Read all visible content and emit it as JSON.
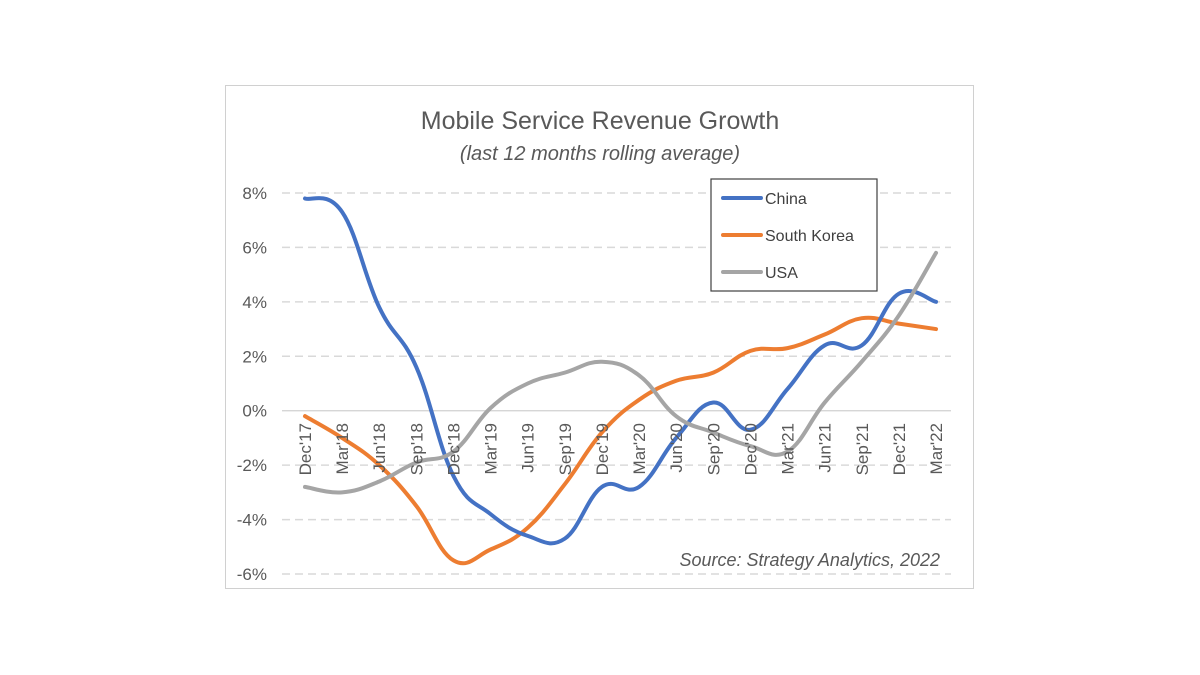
{
  "chart_data": {
    "type": "line",
    "title": "Mobile Service Revenue Growth",
    "subtitle": "(last 12 months rolling average)",
    "xlabel": "",
    "ylabel": "",
    "categories": [
      "Dec'17",
      "Mar'18",
      "Jun'18",
      "Sep'18",
      "Dec'18",
      "Mar'19",
      "Jun'19",
      "Sep'19",
      "Dec'19",
      "Mar'20",
      "Jun'20",
      "Sep'20",
      "Dec'20",
      "Mar'21",
      "Jun'21",
      "Sep'21",
      "Dec'21",
      "Mar'22"
    ],
    "ylim": [
      -6,
      8
    ],
    "yticks": [
      8,
      6,
      4,
      2,
      0,
      -2,
      -4,
      -6
    ],
    "ytick_labels": [
      "8%",
      "6%",
      "4%",
      "2%",
      "0%",
      "-2%",
      "-4%",
      "-6%"
    ],
    "grid": "horizontal dashed",
    "legend_position": "top-right",
    "series": [
      {
        "name": "China",
        "color": "#4472C4",
        "values": [
          7.8,
          7.3,
          3.8,
          1.6,
          -2.4,
          -3.8,
          -4.6,
          -4.7,
          -2.8,
          -2.8,
          -1.0,
          0.3,
          -0.7,
          0.8,
          2.4,
          2.4,
          4.3,
          4.0
        ]
      },
      {
        "name": "South Korea",
        "color": "#ED7D31",
        "values": [
          -0.2,
          -1.0,
          -2.0,
          -3.5,
          -5.5,
          -5.1,
          -4.3,
          -2.7,
          -0.8,
          0.4,
          1.1,
          1.4,
          2.2,
          2.3,
          2.8,
          3.4,
          3.2,
          3.0
        ]
      },
      {
        "name": "USA",
        "color": "#A5A5A5",
        "values": [
          -2.8,
          -3.0,
          -2.6,
          -1.9,
          -1.5,
          0.1,
          1.0,
          1.4,
          1.8,
          1.3,
          -0.2,
          -0.8,
          -1.3,
          -1.5,
          0.3,
          1.8,
          3.5,
          5.8
        ]
      }
    ],
    "source": "Source: Strategy Analytics, 2022"
  }
}
